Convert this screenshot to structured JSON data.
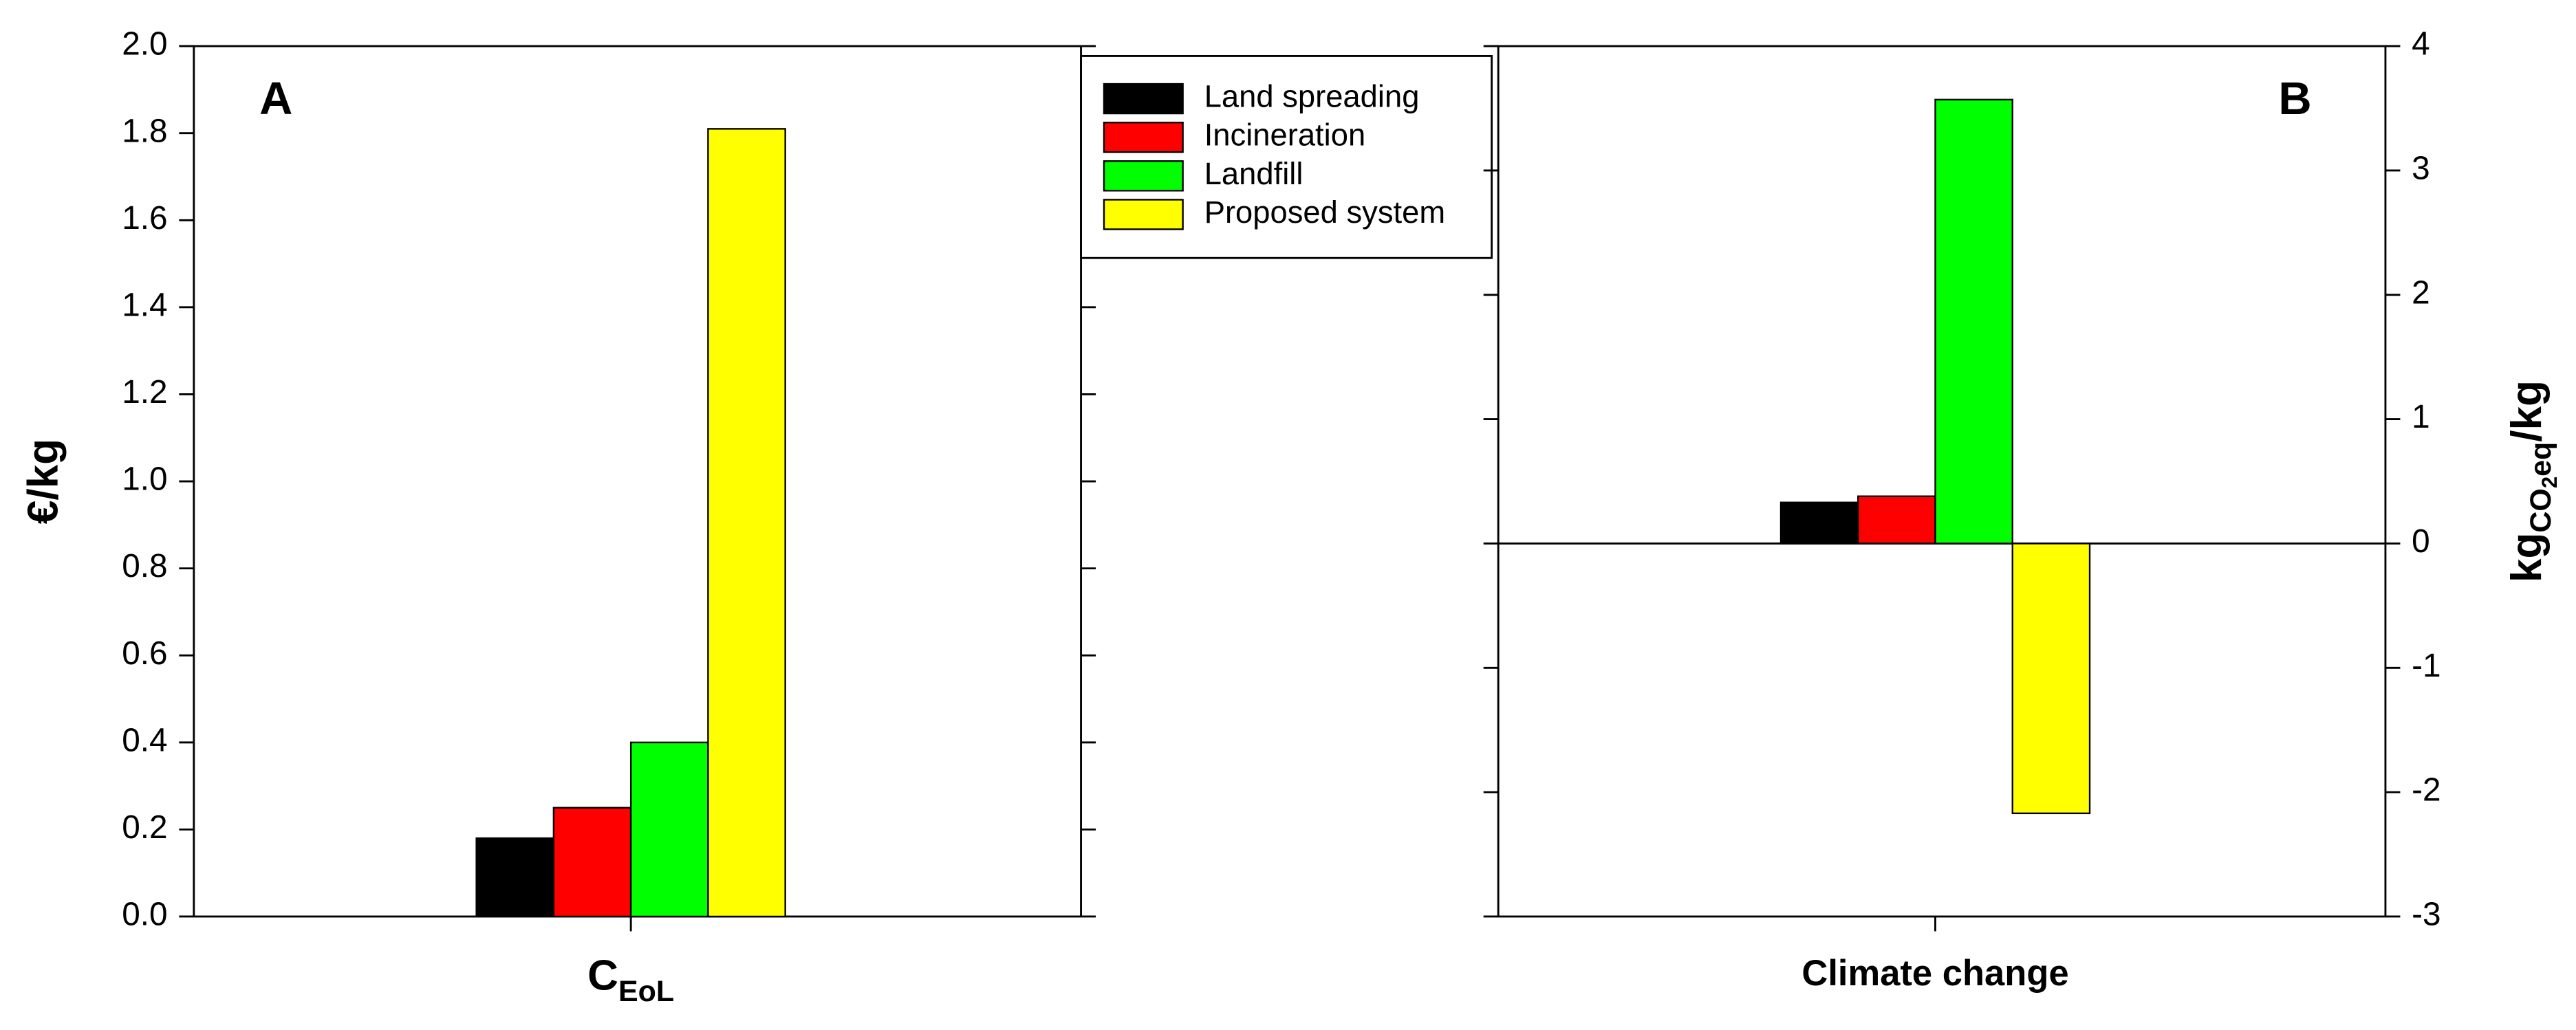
{
  "chart_data": [
    {
      "type": "bar",
      "panel_label": "A",
      "y_label": "€/kg",
      "category_main": [
        "C"
      ],
      "category_sub": [
        "EoL"
      ],
      "series": [
        {
          "name": "Land spreading",
          "color": "#000000",
          "values": [
            0.18
          ]
        },
        {
          "name": "Incineration",
          "color": "#ff0000",
          "values": [
            0.25
          ]
        },
        {
          "name": "Landfill",
          "color": "#00ff00",
          "values": [
            0.4
          ]
        },
        {
          "name": "Proposed system",
          "color": "#ffff00",
          "values": [
            1.81
          ]
        }
      ],
      "ylim": [
        0,
        2
      ],
      "yticks": [
        {
          "value": 0,
          "label": "0.0"
        },
        0.2,
        0.4,
        0.6,
        0.8,
        {
          "value": 1,
          "label": "1.0"
        },
        1.2,
        1.4,
        1.6,
        1.8,
        {
          "value": 2,
          "label": "2.0"
        }
      ],
      "legend": "outside-right"
    },
    {
      "type": "bar",
      "panel_label": "B",
      "categories": [
        "Climate change"
      ],
      "y2_label_parts": [
        "kg",
        "CO",
        "2",
        "eq",
        "/kg"
      ],
      "series": [
        {
          "color": "#000000",
          "values": [
            0.33
          ],
          "axis": "y2"
        },
        {
          "color": "#ff0000",
          "values": [
            0.38
          ],
          "axis": "y2"
        },
        {
          "color": "#00ff00",
          "values": [
            3.57
          ],
          "axis": "y2"
        },
        {
          "color": "#ffff00",
          "values": [
            -2.17
          ],
          "axis": "y2"
        }
      ],
      "y2lim": [
        -3,
        4
      ],
      "y2ticks": [
        -3,
        -2,
        -1,
        0,
        1,
        2,
        3,
        4
      ],
      "zero_line": true
    }
  ]
}
